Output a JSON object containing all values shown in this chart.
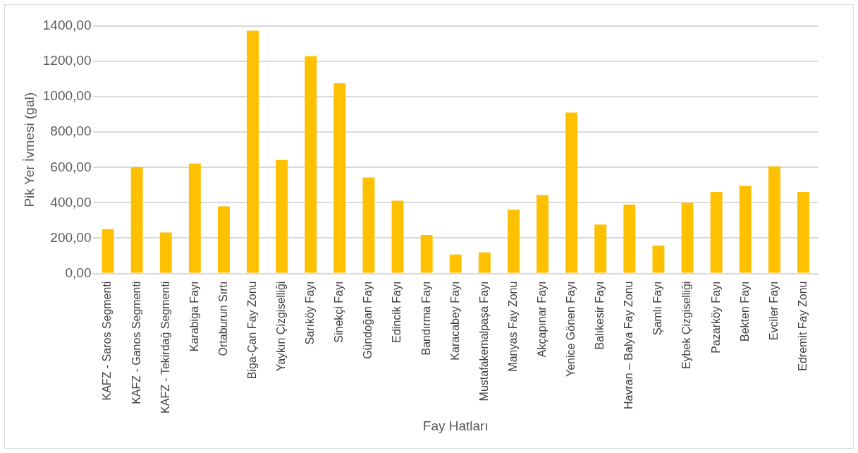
{
  "chart_data": {
    "type": "bar",
    "xlabel": "Fay Hatları",
    "ylabel": "Pik Yer İvmesi (gal)",
    "categories": [
      "KAFZ - Saros Segmenti",
      "KAFZ - Ganos Segmenti",
      "KAFZ - Tekirdağ Segmenti",
      "Karabiga Fayı",
      "Ortaburun Sırtı",
      "Biga-Çan Fay Zonu",
      "Yaykın Çizgiselliği",
      "Sarıköy Fayı",
      "Sinekçi Fayı",
      "Gündoğan Fayı",
      "Edincik Fayı",
      "Bandırma Fayı",
      "Karacabey Fayı",
      "Mustafakemalpaşa Fayı",
      "Manyas Fay Zonu",
      "Akçapınar Fayı",
      "Yenice Gönen Fayı",
      "Balıkesir Fayı",
      "Havran – Balya Fay Zonu",
      "Şamlı Fayı",
      "Eybek Çizgiselliği",
      "Pazarköy Fayı",
      "Bekten Fayı",
      "Evciler Fayı",
      "Edremit Fay Zonu"
    ],
    "values": [
      251,
      602,
      232,
      622,
      380,
      1374,
      642,
      1230,
      1077,
      543,
      412,
      218,
      107,
      119,
      361,
      445,
      911,
      277,
      390,
      158,
      400,
      462,
      495,
      606,
      462
    ],
    "color": "#ffc000",
    "ylim": [
      0,
      1400
    ],
    "yticks": [
      {
        "value": 0,
        "label": "0,00"
      },
      {
        "value": 200,
        "label": "200,00"
      },
      {
        "value": 400,
        "label": "400,00"
      },
      {
        "value": 600,
        "label": "600,00"
      },
      {
        "value": 800,
        "label": "800,00"
      },
      {
        "value": 1000,
        "label": "1000,00"
      },
      {
        "value": 1200,
        "label": "1200,00"
      },
      {
        "value": 1400,
        "label": "1400,00"
      }
    ],
    "grid": "y"
  }
}
